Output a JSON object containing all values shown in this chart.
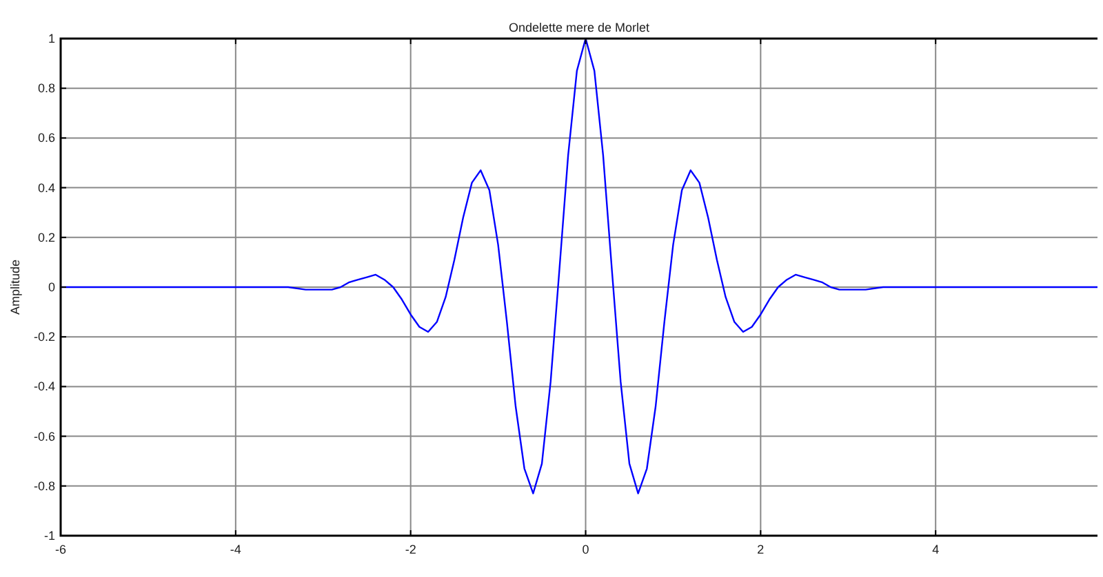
{
  "chart_data": {
    "type": "line",
    "title": "Ondelette mere de Morlet",
    "ylabel": "Amplitude",
    "x": [
      -6,
      -3.6,
      -3.4,
      -3.2,
      -3,
      -2.9,
      -2.8,
      -2.7,
      -2.6,
      -2.5,
      -2.4,
      -2.3,
      -2.2,
      -2.1,
      -2,
      -1.9,
      -1.8,
      -1.7,
      -1.6,
      -1.5,
      -1.4,
      -1.3,
      -1.2,
      -1.1,
      -1,
      -0.9,
      -0.8,
      -0.7,
      -0.6,
      -0.5,
      -0.4,
      -0.3,
      -0.2,
      -0.1,
      0,
      0.1,
      0.2,
      0.3,
      0.4,
      0.5,
      0.6,
      0.7,
      0.8,
      0.9,
      1,
      1.1,
      1.2,
      1.3,
      1.4,
      1.5,
      1.6,
      1.7,
      1.8,
      1.9,
      2,
      2.1,
      2.2,
      2.3,
      2.4,
      2.5,
      2.6,
      2.7,
      2.8,
      2.9,
      3,
      3.2,
      3.4,
      3.6,
      5.85
    ],
    "series": [
      {
        "color": "#0000ff",
        "values": [
          0,
          0,
          0,
          -0.01,
          -0.01,
          -0.01,
          0,
          0.02,
          0.03,
          0.04,
          0.05,
          0.03,
          0,
          -0.05,
          -0.11,
          -0.16,
          -0.18,
          -0.14,
          -0.04,
          0.11,
          0.28,
          0.42,
          0.47,
          0.39,
          0.17,
          -0.14,
          -0.48,
          -0.73,
          -0.83,
          -0.71,
          -0.38,
          0.07,
          0.53,
          0.87,
          1,
          0.87,
          0.53,
          0.07,
          -0.38,
          -0.71,
          -0.83,
          -0.73,
          -0.48,
          -0.14,
          0.17,
          0.39,
          0.47,
          0.42,
          0.28,
          0.11,
          -0.04,
          -0.14,
          -0.18,
          -0.16,
          -0.11,
          -0.05,
          0,
          0.03,
          0.05,
          0.04,
          0.03,
          0.02,
          0,
          -0.01,
          -0.01,
          -0.01,
          0,
          0,
          0
        ]
      }
    ],
    "xlim": [
      -6,
      5.85
    ],
    "ylim": [
      -1,
      1
    ],
    "xticks": [
      -6,
      -4,
      -2,
      0,
      2,
      4
    ],
    "yticks": [
      -1,
      -0.8,
      -0.6,
      -0.4,
      -0.2,
      0,
      0.2,
      0.4,
      0.6,
      0.8,
      1
    ],
    "grid": true,
    "marker": "none",
    "line_style": "solid"
  }
}
